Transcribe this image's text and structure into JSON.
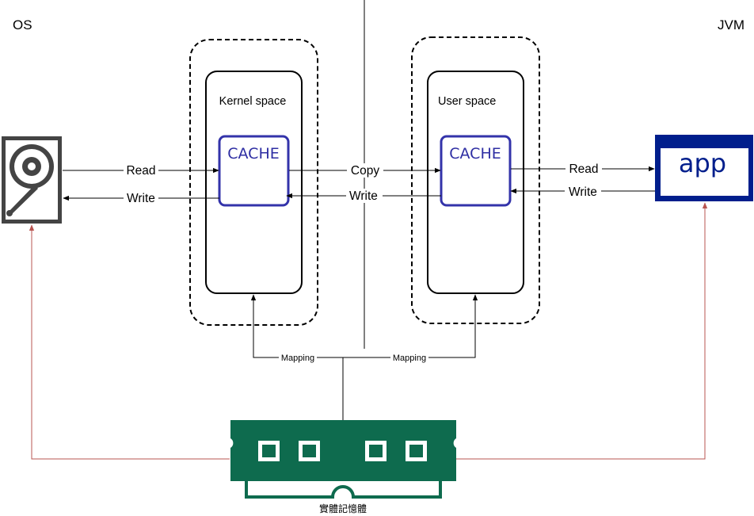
{
  "corner_labels": {
    "left": "OS",
    "right": "JVM"
  },
  "kernel": {
    "title": "Kernel space",
    "cache": "CACHE"
  },
  "user": {
    "title": "User space",
    "cache": "CACHE"
  },
  "app": {
    "label": "app"
  },
  "arrows": {
    "disk_read": "Read",
    "disk_write": "Write",
    "copy": "Copy",
    "user_write": "Write",
    "app_read": "Read",
    "app_write": "Write"
  },
  "mapping": {
    "left": "Mapping",
    "right": "Mapping"
  },
  "memory": {
    "label": "實體記憶體"
  },
  "colors": {
    "cache_border": "#3333AA",
    "app_blue": "#001E8C",
    "ram_green": "#0E6B4E",
    "red_line": "#B85450",
    "disk_gray": "#444444"
  },
  "icons": {
    "disk": "hard-disk-icon",
    "memory": "ram-module-icon"
  }
}
